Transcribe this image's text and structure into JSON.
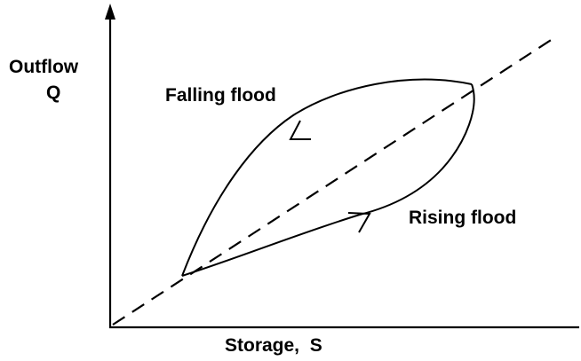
{
  "axes": {
    "y_label_line1": "Outflow",
    "y_label_line2": "Q",
    "x_label": "Storage,  S"
  },
  "curves": {
    "falling_label": "Falling flood",
    "rising_label": "Rising flood"
  },
  "colors": {
    "ink": "#000000",
    "background": "#ffffff"
  }
}
